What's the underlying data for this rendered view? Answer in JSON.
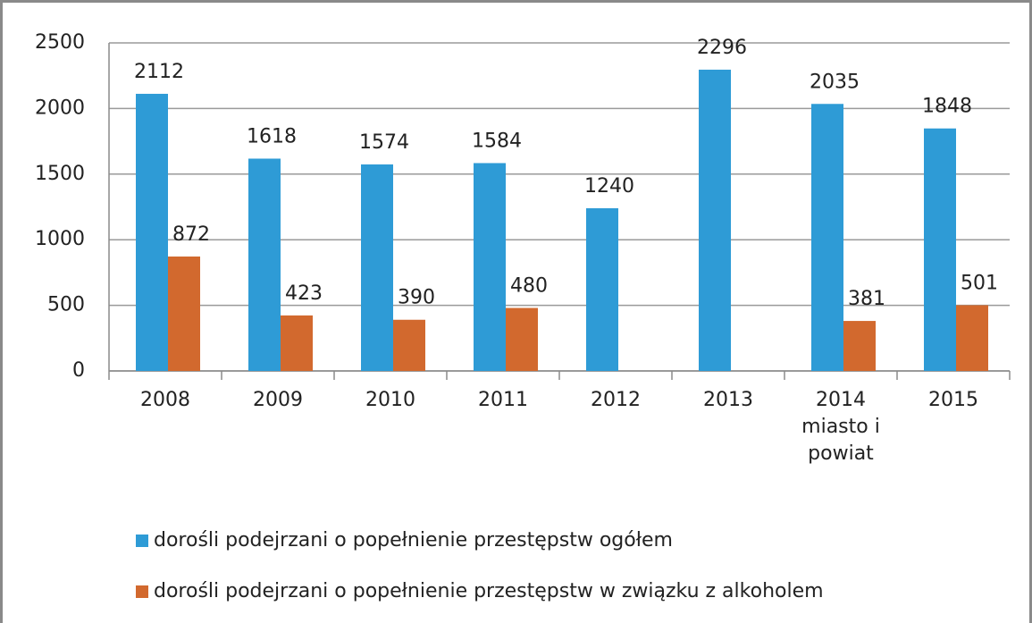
{
  "chart_data": {
    "type": "bar",
    "categories": [
      "2008",
      "2009",
      "2010",
      "2011",
      "2012",
      "2013",
      "2014\nmiasto i\npowiat",
      "2015"
    ],
    "series": [
      {
        "name": "dorośli podejrzani o popełnienie przestępstw ogółem",
        "color": "#2e9bd6",
        "values": [
          2112,
          1618,
          1574,
          1584,
          1240,
          2296,
          2035,
          1848
        ]
      },
      {
        "name": "dorośli podejrzani o popełnienie przestępstw w związku z alkoholem",
        "color": "#d2692e",
        "values": [
          872,
          423,
          390,
          480,
          null,
          null,
          381,
          501
        ]
      }
    ],
    "ylim": [
      0,
      2500
    ],
    "yticks": [
      0,
      500,
      1000,
      1500,
      2000,
      2500
    ],
    "grid": true,
    "legend": "bottom"
  }
}
